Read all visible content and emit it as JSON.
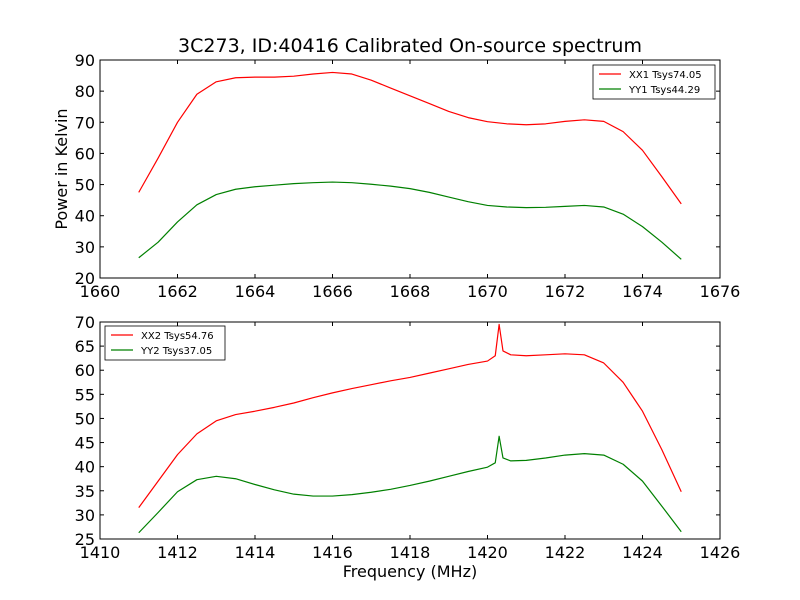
{
  "figure": {
    "title": "3C273, ID:40416 Calibrated On-source spectrum",
    "ylabel": "Power in Kelvin",
    "xlabel": "Frequency (MHz)"
  },
  "chart_data": [
    {
      "type": "line",
      "title": "3C273, ID:40416 Calibrated On-source spectrum",
      "ylabel": "Power in Kelvin",
      "xlabel": "",
      "xlim": [
        1660,
        1676
      ],
      "ylim": [
        20,
        90
      ],
      "xticks": [
        1660,
        1662,
        1664,
        1666,
        1668,
        1670,
        1672,
        1674,
        1676
      ],
      "yticks": [
        20,
        30,
        40,
        50,
        60,
        70,
        80,
        90
      ],
      "grid": false,
      "legend_position": "top-right",
      "series": [
        {
          "name": "XX1 Tsys74.05",
          "color": "#ff0000",
          "x": [
            1661.0,
            1661.5,
            1662.0,
            1662.5,
            1663.0,
            1663.5,
            1664.0,
            1664.5,
            1665.0,
            1665.5,
            1666.0,
            1666.5,
            1667.0,
            1667.5,
            1668.0,
            1668.5,
            1669.0,
            1669.5,
            1670.0,
            1670.5,
            1671.0,
            1671.5,
            1672.0,
            1672.5,
            1673.0,
            1673.5,
            1674.0,
            1674.5,
            1675.0
          ],
          "y": [
            47.5,
            58.5,
            70.0,
            79.0,
            83.0,
            84.3,
            84.5,
            84.5,
            84.8,
            85.5,
            86.0,
            85.5,
            83.5,
            81.0,
            78.5,
            76.0,
            73.5,
            71.5,
            70.2,
            69.5,
            69.2,
            69.5,
            70.3,
            70.8,
            70.3,
            67.0,
            61.0,
            52.5,
            43.8
          ]
        },
        {
          "name": "YY1 Tsys44.29",
          "color": "#008000",
          "x": [
            1661.0,
            1661.5,
            1662.0,
            1662.5,
            1663.0,
            1663.5,
            1664.0,
            1664.5,
            1665.0,
            1665.5,
            1666.0,
            1666.5,
            1667.0,
            1667.5,
            1668.0,
            1668.5,
            1669.0,
            1669.5,
            1670.0,
            1670.5,
            1671.0,
            1671.5,
            1672.0,
            1672.5,
            1673.0,
            1673.5,
            1674.0,
            1674.5,
            1675.0
          ],
          "y": [
            26.5,
            31.5,
            38.0,
            43.5,
            46.8,
            48.5,
            49.3,
            49.8,
            50.3,
            50.6,
            50.8,
            50.6,
            50.1,
            49.5,
            48.7,
            47.5,
            46.0,
            44.5,
            43.3,
            42.8,
            42.6,
            42.7,
            43.0,
            43.3,
            42.8,
            40.5,
            36.5,
            31.5,
            26.0
          ]
        }
      ]
    },
    {
      "type": "line",
      "title": "",
      "ylabel": "",
      "xlabel": "Frequency (MHz)",
      "xlim": [
        1410,
        1426
      ],
      "ylim": [
        25,
        70
      ],
      "xticks": [
        1410,
        1412,
        1414,
        1416,
        1418,
        1420,
        1422,
        1424,
        1426
      ],
      "yticks": [
        25,
        30,
        35,
        40,
        45,
        50,
        55,
        60,
        65,
        70
      ],
      "grid": false,
      "legend_position": "top-left",
      "series": [
        {
          "name": "XX2 Tsys54.76",
          "color": "#ff0000",
          "x": [
            1411.0,
            1411.5,
            1412.0,
            1412.5,
            1413.0,
            1413.5,
            1414.0,
            1414.5,
            1415.0,
            1415.5,
            1416.0,
            1416.5,
            1417.0,
            1417.5,
            1418.0,
            1418.5,
            1419.0,
            1419.5,
            1420.0,
            1420.2,
            1420.3,
            1420.4,
            1420.6,
            1421.0,
            1421.5,
            1422.0,
            1422.5,
            1423.0,
            1423.5,
            1424.0,
            1424.5,
            1425.0
          ],
          "y": [
            31.5,
            37.0,
            42.5,
            46.8,
            49.5,
            50.8,
            51.5,
            52.3,
            53.2,
            54.3,
            55.3,
            56.2,
            57.0,
            57.8,
            58.5,
            59.4,
            60.3,
            61.2,
            61.9,
            63.0,
            69.5,
            64.0,
            63.2,
            63.0,
            63.2,
            63.4,
            63.2,
            61.5,
            57.5,
            51.5,
            43.5,
            34.8
          ]
        },
        {
          "name": "YY2 Tsys37.05",
          "color": "#008000",
          "x": [
            1411.0,
            1411.5,
            1412.0,
            1412.5,
            1413.0,
            1413.5,
            1414.0,
            1414.5,
            1415.0,
            1415.5,
            1416.0,
            1416.5,
            1417.0,
            1417.5,
            1418.0,
            1418.5,
            1419.0,
            1419.5,
            1420.0,
            1420.2,
            1420.3,
            1420.4,
            1420.6,
            1421.0,
            1421.5,
            1422.0,
            1422.5,
            1423.0,
            1423.5,
            1424.0,
            1424.5,
            1425.0
          ],
          "y": [
            26.3,
            30.5,
            34.8,
            37.3,
            38.0,
            37.5,
            36.3,
            35.2,
            34.3,
            33.9,
            33.9,
            34.2,
            34.7,
            35.3,
            36.1,
            37.0,
            38.0,
            39.0,
            39.9,
            40.8,
            46.3,
            41.8,
            41.2,
            41.3,
            41.8,
            42.4,
            42.7,
            42.4,
            40.5,
            37.0,
            31.8,
            26.5
          ]
        }
      ]
    }
  ]
}
